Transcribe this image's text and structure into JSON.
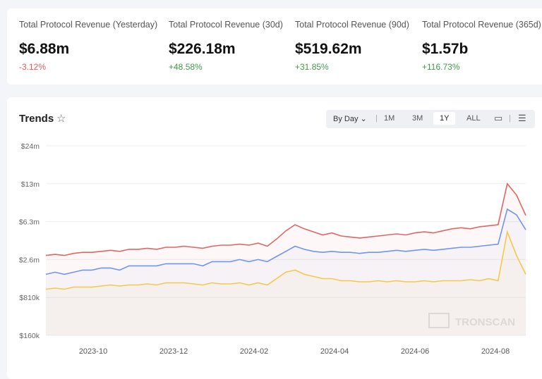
{
  "stats": [
    {
      "label": "Total Protocol Revenue (Yesterday)",
      "value": "$6.88m",
      "change": "-3.12%",
      "dir": "neg"
    },
    {
      "label": "Total Protocol Revenue (30d)",
      "value": "$226.18m",
      "change": "+48.58%",
      "dir": "pos"
    },
    {
      "label": "Total Protocol Revenue (90d)",
      "value": "$519.62m",
      "change": "+31.85%",
      "dir": "pos"
    },
    {
      "label": "Total Protocol Revenue (365d)",
      "value": "$1.57b",
      "change": "+116.73%",
      "dir": "pos"
    }
  ],
  "trends": {
    "title": "Trends",
    "granularity": "By Day",
    "ranges": [
      "1M",
      "3M",
      "1Y",
      "ALL"
    ],
    "selected_range": "1Y",
    "watermark": "TRONSCAN"
  },
  "chart_data": {
    "type": "line",
    "x_start": "2023-08-24",
    "x_step": "1 week",
    "x_ticks": [
      "2023-10",
      "2023-12",
      "2024-02",
      "2024-04",
      "2024-06",
      "2024-08"
    ],
    "y_ticks": [
      {
        "label": "$160k",
        "value": 0.16
      },
      {
        "label": "$810k",
        "value": 0.81
      },
      {
        "label": "$2.6m",
        "value": 2.6
      },
      {
        "label": "$6.3m",
        "value": 6.3
      },
      {
        "label": "$13m",
        "value": 13
      },
      {
        "label": "$24m",
        "value": 24
      }
    ],
    "y_unit": "millions USD",
    "grid": true,
    "series": [
      {
        "color": "#e06666",
        "values": [
          3.0,
          3.1,
          3.0,
          3.2,
          3.3,
          3.3,
          3.4,
          3.5,
          3.4,
          3.6,
          3.6,
          3.7,
          3.6,
          3.8,
          3.8,
          3.9,
          3.8,
          3.7,
          3.9,
          4.0,
          4.0,
          4.1,
          4.0,
          4.2,
          3.9,
          4.6,
          5.4,
          6.0,
          5.6,
          5.3,
          5.0,
          5.2,
          4.9,
          4.8,
          4.7,
          4.8,
          4.9,
          5.0,
          5.1,
          5.0,
          5.2,
          5.3,
          5.2,
          5.4,
          5.6,
          5.7,
          5.6,
          5.8,
          5.9,
          6.0,
          13.0,
          11.0,
          7.4
        ]
      },
      {
        "color": "#6f95f0",
        "values": [
          1.9,
          2.0,
          1.9,
          2.0,
          2.1,
          2.1,
          2.2,
          2.2,
          2.1,
          2.3,
          2.3,
          2.3,
          2.3,
          2.4,
          2.4,
          2.4,
          2.4,
          2.3,
          2.5,
          2.5,
          2.5,
          2.6,
          2.5,
          2.6,
          2.5,
          2.9,
          3.4,
          3.9,
          3.6,
          3.4,
          3.3,
          3.4,
          3.3,
          3.3,
          3.2,
          3.3,
          3.3,
          3.4,
          3.5,
          3.4,
          3.5,
          3.6,
          3.5,
          3.6,
          3.7,
          3.8,
          3.8,
          3.9,
          4.0,
          4.1,
          8.5,
          7.5,
          5.5
        ]
      },
      {
        "color": "#f2c94c",
        "values": [
          1.2,
          1.25,
          1.2,
          1.3,
          1.3,
          1.3,
          1.35,
          1.4,
          1.35,
          1.4,
          1.4,
          1.45,
          1.4,
          1.5,
          1.5,
          1.5,
          1.45,
          1.4,
          1.5,
          1.45,
          1.45,
          1.5,
          1.4,
          1.5,
          1.4,
          1.7,
          2.0,
          2.1,
          1.9,
          1.8,
          1.7,
          1.7,
          1.6,
          1.6,
          1.55,
          1.55,
          1.6,
          1.55,
          1.6,
          1.55,
          1.55,
          1.6,
          1.55,
          1.6,
          1.6,
          1.6,
          1.65,
          1.6,
          1.7,
          1.6,
          5.3,
          3.0,
          1.9
        ]
      }
    ]
  }
}
